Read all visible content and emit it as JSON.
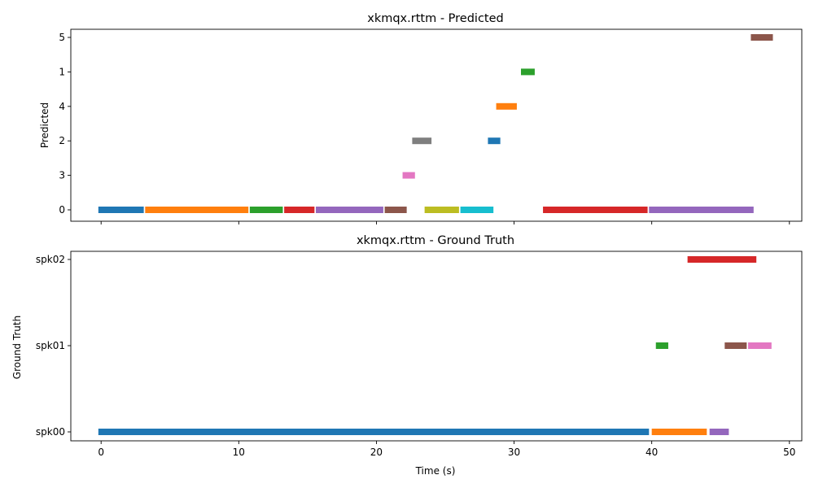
{
  "chart_data": [
    {
      "type": "timeline",
      "title": "xkmqx.rttm - Predicted",
      "xlabel": "",
      "ylabel": "Predicted",
      "xlim": [
        -2.2,
        50.9
      ],
      "x_ticks": [
        0,
        10,
        20,
        30,
        40,
        50
      ],
      "x_tick_labels_visible": false,
      "y_categories": [
        "0",
        "3",
        "2",
        "4",
        "1",
        "5"
      ],
      "grid": false,
      "segments": [
        {
          "track": "0",
          "start": -0.2,
          "end": 3.1,
          "color": "#1f77b4"
        },
        {
          "track": "0",
          "start": 3.2,
          "end": 10.7,
          "color": "#ff7f0e"
        },
        {
          "track": "0",
          "start": 10.8,
          "end": 13.2,
          "color": "#2ca02c"
        },
        {
          "track": "0",
          "start": 13.3,
          "end": 15.5,
          "color": "#d62728"
        },
        {
          "track": "0",
          "start": 15.6,
          "end": 20.5,
          "color": "#9467bd"
        },
        {
          "track": "0",
          "start": 20.6,
          "end": 22.2,
          "color": "#8c564b"
        },
        {
          "track": "3",
          "start": 21.9,
          "end": 22.8,
          "color": "#e377c2"
        },
        {
          "track": "2",
          "start": 22.6,
          "end": 24.0,
          "color": "#7f7f7f"
        },
        {
          "track": "0",
          "start": 23.5,
          "end": 26.0,
          "color": "#bcbd22"
        },
        {
          "track": "0",
          "start": 26.1,
          "end": 28.5,
          "color": "#17becf"
        },
        {
          "track": "2",
          "start": 28.1,
          "end": 29.0,
          "color": "#1f77b4"
        },
        {
          "track": "4",
          "start": 28.7,
          "end": 30.2,
          "color": "#ff7f0e"
        },
        {
          "track": "1",
          "start": 30.5,
          "end": 31.5,
          "color": "#2ca02c"
        },
        {
          "track": "0",
          "start": 32.1,
          "end": 39.7,
          "color": "#d62728"
        },
        {
          "track": "0",
          "start": 39.8,
          "end": 47.4,
          "color": "#9467bd"
        },
        {
          "track": "5",
          "start": 47.2,
          "end": 48.8,
          "color": "#8c564b"
        }
      ]
    },
    {
      "type": "timeline",
      "title": "xkmqx.rttm - Ground Truth",
      "xlabel": "Time (s)",
      "ylabel": "Ground Truth",
      "xlim": [
        -2.2,
        50.9
      ],
      "x_ticks": [
        0,
        10,
        20,
        30,
        40,
        50
      ],
      "x_tick_labels_visible": true,
      "y_categories": [
        "spk00",
        "spk01",
        "spk02"
      ],
      "grid": false,
      "segments": [
        {
          "track": "spk00",
          "start": -0.2,
          "end": 39.8,
          "color": "#1f77b4"
        },
        {
          "track": "spk00",
          "start": 40.0,
          "end": 44.0,
          "color": "#ff7f0e"
        },
        {
          "track": "spk01",
          "start": 40.3,
          "end": 41.2,
          "color": "#2ca02c"
        },
        {
          "track": "spk00",
          "start": 44.2,
          "end": 45.6,
          "color": "#9467bd"
        },
        {
          "track": "spk02",
          "start": 42.6,
          "end": 47.6,
          "color": "#d62728"
        },
        {
          "track": "spk01",
          "start": 45.3,
          "end": 46.9,
          "color": "#8c564b"
        },
        {
          "track": "spk01",
          "start": 47.0,
          "end": 48.7,
          "color": "#e377c2"
        }
      ]
    }
  ]
}
